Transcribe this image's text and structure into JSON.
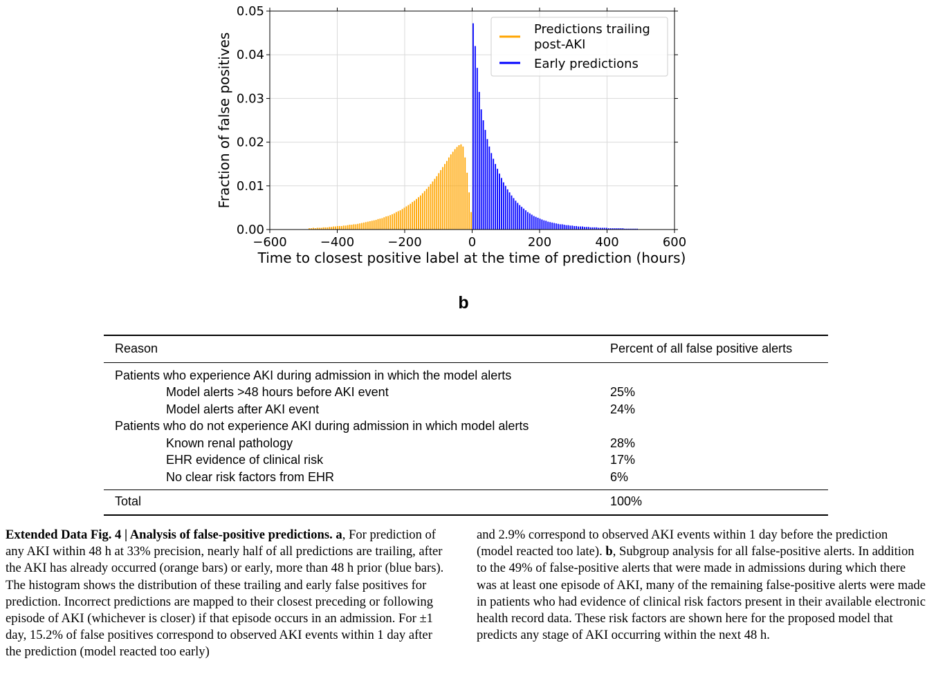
{
  "chart_data": {
    "type": "bar",
    "xlabel": "Time to closest positive label at the time of prediction (hours)",
    "ylabel": "Fraction of false positives",
    "xlim": [
      -600,
      600
    ],
    "ylim": [
      0,
      0.05
    ],
    "xticks": [
      -600,
      -400,
      -200,
      0,
      200,
      400,
      600
    ],
    "xtick_labels": [
      "−600",
      "−400",
      "−200",
      "0",
      "200",
      "400",
      "600"
    ],
    "yticks": [
      0.0,
      0.01,
      0.02,
      0.03,
      0.04,
      0.05
    ],
    "ytick_labels": [
      "0.00",
      "0.01",
      "0.02",
      "0.03",
      "0.04",
      "0.05"
    ],
    "grid": true,
    "legend_position": "top-right",
    "bin_width_hours": 6,
    "series": [
      {
        "name": "Predictions trailing post-AKI",
        "legend_lines": [
          "Predictions trailing",
          "post-AKI"
        ],
        "color": "#ffa500",
        "x": [
          -486,
          -480,
          -474,
          -468,
          -462,
          -456,
          -450,
          -444,
          -438,
          -432,
          -426,
          -420,
          -414,
          -408,
          -402,
          -396,
          -390,
          -384,
          -378,
          -372,
          -366,
          -360,
          -354,
          -348,
          -342,
          -336,
          -330,
          -324,
          -318,
          -312,
          -306,
          -300,
          -294,
          -288,
          -282,
          -276,
          -270,
          -264,
          -258,
          -252,
          -246,
          -240,
          -234,
          -228,
          -222,
          -216,
          -210,
          -204,
          -198,
          -192,
          -186,
          -180,
          -174,
          -168,
          -162,
          -156,
          -150,
          -144,
          -138,
          -132,
          -126,
          -120,
          -114,
          -108,
          -102,
          -96,
          -90,
          -84,
          -78,
          -72,
          -66,
          -60,
          -54,
          -48,
          -42,
          -36,
          -30,
          -24,
          -18,
          -12,
          -6
        ],
        "values": [
          0.0003,
          0.0003,
          0.0004,
          0.0003,
          0.0004,
          0.0004,
          0.0004,
          0.0005,
          0.0005,
          0.0005,
          0.0006,
          0.0006,
          0.0007,
          0.0007,
          0.0008,
          0.0008,
          0.0008,
          0.0009,
          0.0009,
          0.001,
          0.0011,
          0.0011,
          0.0012,
          0.0012,
          0.0013,
          0.0014,
          0.0015,
          0.0016,
          0.0017,
          0.0018,
          0.0019,
          0.002,
          0.0021,
          0.0022,
          0.0024,
          0.0025,
          0.0026,
          0.0028,
          0.003,
          0.0031,
          0.0033,
          0.0035,
          0.0037,
          0.004,
          0.0042,
          0.0044,
          0.0047,
          0.005,
          0.0053,
          0.0056,
          0.0059,
          0.0063,
          0.0066,
          0.007,
          0.0074,
          0.0078,
          0.0083,
          0.0088,
          0.0093,
          0.0098,
          0.0104,
          0.011,
          0.0116,
          0.0122,
          0.0129,
          0.0136,
          0.0143,
          0.015,
          0.0157,
          0.0165,
          0.0172,
          0.0178,
          0.0184,
          0.0189,
          0.0193,
          0.0195,
          0.019,
          0.0165,
          0.013,
          0.0085,
          0.004
        ]
      },
      {
        "name": "Early predictions",
        "legend_lines": [
          "Early predictions"
        ],
        "color": "#0000ff",
        "x": [
          6,
          12,
          18,
          24,
          30,
          36,
          42,
          48,
          54,
          60,
          66,
          72,
          78,
          84,
          90,
          96,
          102,
          108,
          114,
          120,
          126,
          132,
          138,
          144,
          150,
          156,
          162,
          168,
          174,
          180,
          186,
          192,
          198,
          204,
          210,
          216,
          222,
          228,
          234,
          240,
          246,
          252,
          258,
          264,
          270,
          276,
          282,
          288,
          294,
          300,
          306,
          312,
          318,
          324,
          330,
          336,
          342,
          348,
          354,
          360,
          366,
          372,
          378,
          384,
          390,
          396,
          402,
          408,
          414,
          420,
          426,
          432,
          438,
          444,
          450,
          456,
          462,
          468,
          474,
          480,
          486,
          492
        ],
        "values": [
          0.0472,
          0.042,
          0.037,
          0.0315,
          0.0275,
          0.025,
          0.0228,
          0.0207,
          0.019,
          0.0175,
          0.0162,
          0.015,
          0.0139,
          0.0128,
          0.0118,
          0.0108,
          0.01,
          0.0092,
          0.0085,
          0.0078,
          0.0072,
          0.0066,
          0.0061,
          0.0056,
          0.0052,
          0.0048,
          0.0044,
          0.004,
          0.0037,
          0.0034,
          0.0031,
          0.0029,
          0.0027,
          0.0025,
          0.0023,
          0.0021,
          0.002,
          0.0018,
          0.0017,
          0.0016,
          0.0015,
          0.0014,
          0.0013,
          0.0012,
          0.0012,
          0.0011,
          0.001,
          0.001,
          0.0009,
          0.0009,
          0.0008,
          0.0008,
          0.0007,
          0.0007,
          0.0007,
          0.0006,
          0.0006,
          0.0006,
          0.0005,
          0.0005,
          0.0005,
          0.0005,
          0.0004,
          0.0004,
          0.0004,
          0.0004,
          0.0004,
          0.0003,
          0.0003,
          0.0003,
          0.0003,
          0.0003,
          0.0003,
          0.0003,
          0.0003,
          0.0002,
          0.0002,
          0.0002,
          0.0002,
          0.0002,
          0.0002,
          0.0002
        ]
      }
    ]
  },
  "panel_b_label": "b",
  "table": {
    "headers": [
      "Reason",
      "Percent of all false positive alerts"
    ],
    "rows": [
      {
        "reason": "Patients who experience AKI during admission in which the model alerts",
        "percent": "",
        "indent": false
      },
      {
        "reason": "Model alerts >48 hours before AKI event",
        "percent": "25%",
        "indent": true
      },
      {
        "reason": "Model alerts after AKI event",
        "percent": "24%",
        "indent": true
      },
      {
        "reason": "Patients who do not experience AKI during admission in which model alerts",
        "percent": "",
        "indent": false
      },
      {
        "reason": "Known renal pathology",
        "percent": "28%",
        "indent": true
      },
      {
        "reason": "EHR evidence of clinical risk",
        "percent": "17%",
        "indent": true
      },
      {
        "reason": "No clear risk factors from EHR",
        "percent": "6%",
        "indent": true
      }
    ],
    "total_label": "Total",
    "total_value": "100%"
  },
  "caption": {
    "title": "Extended Data Fig. 4 | Analysis of false-positive predictions.",
    "a_label": "a",
    "a_text": ", For prediction of any AKI within 48 h at 33% precision, nearly half of all predictions are trailing, after the AKI has already occurred (orange bars) or early, more than 48 h prior (blue bars). The histogram shows the distribution of these trailing and early false positives for prediction. Incorrect predictions are mapped to their closest preceding or following episode of AKI (whichever is closer) if that episode occurs in an admission. For ±1 day, 15.2% of false positives correspond to observed AKI events within 1 day after the prediction (model reacted too early)",
    "right_text_1": "and 2.9% correspond to observed AKI events within 1 day before the prediction (model reacted too late).",
    "b_label": "b",
    "right_text_2": ", Subgroup analysis for all false-positive alerts. In addition to the 49% of false-positive alerts that were made in admissions during which there was at least one episode of AKI, many of the remaining false-positive alerts were made in patients who had evidence of clinical risk factors present in their available electronic health record data. These risk factors are shown here for the proposed model that predicts any stage of AKI occurring within the next 48 h."
  }
}
